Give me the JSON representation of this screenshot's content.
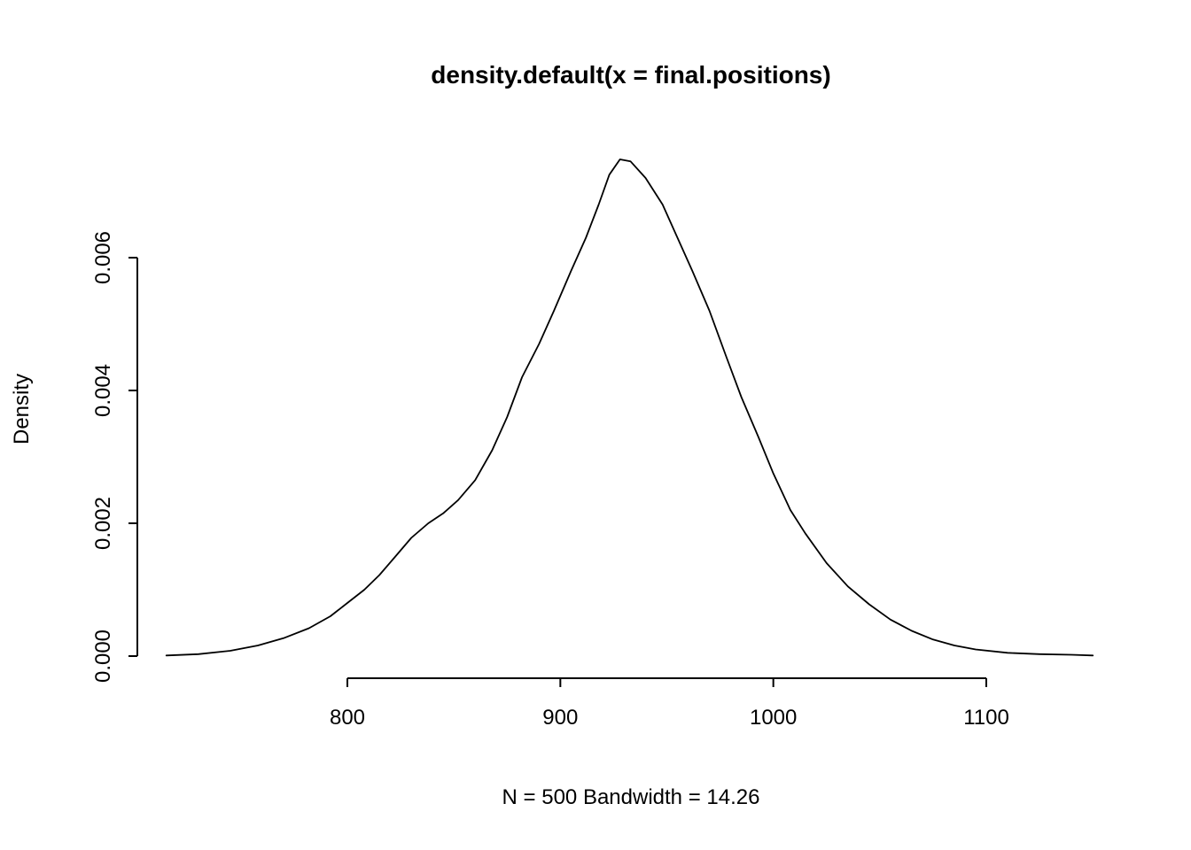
{
  "chart_data": {
    "type": "line",
    "title": "density.default(x = final.positions)",
    "xlabel": "N = 500   Bandwidth = 14.26",
    "ylabel": "Density",
    "n_label": "N = 500",
    "bandwidth_label": "Bandwidth = 14.26",
    "n": 500,
    "bandwidth": 14.26,
    "x_ticks": [
      800,
      900,
      1000,
      1100
    ],
    "x_tick_labels": [
      "800",
      "900",
      "1000",
      "1100"
    ],
    "y_ticks": [
      0,
      0.002,
      0.004,
      0.006
    ],
    "y_tick_labels": [
      "0.000",
      "0.002",
      "0.004",
      "0.006"
    ],
    "xlim": [
      715,
      1150
    ],
    "ylim": [
      0,
      0.0075
    ],
    "grid": false,
    "legend": "none",
    "line_color": "#000000",
    "background_color": "#ffffff",
    "series": [
      {
        "name": "density",
        "x": [
          715,
          730,
          745,
          758,
          770,
          782,
          792,
          800,
          808,
          815,
          822,
          830,
          838,
          845,
          852,
          860,
          868,
          875,
          882,
          890,
          897,
          905,
          912,
          918,
          923,
          928,
          933,
          940,
          948,
          955,
          962,
          970,
          978,
          985,
          993,
          1000,
          1008,
          1015,
          1025,
          1035,
          1045,
          1055,
          1065,
          1075,
          1085,
          1095,
          1110,
          1125,
          1140,
          1150
        ],
        "y": [
          1e-05,
          3e-05,
          8e-05,
          0.00016,
          0.00027,
          0.00042,
          0.0006,
          0.0008,
          0.001,
          0.00122,
          0.00148,
          0.00178,
          0.002,
          0.00215,
          0.00235,
          0.00265,
          0.0031,
          0.0036,
          0.0042,
          0.0047,
          0.0052,
          0.0058,
          0.0063,
          0.0068,
          0.00725,
          0.00748,
          0.00745,
          0.0072,
          0.0068,
          0.0063,
          0.0058,
          0.0052,
          0.0045,
          0.0039,
          0.0033,
          0.00275,
          0.0022,
          0.00185,
          0.0014,
          0.00105,
          0.00078,
          0.00055,
          0.00038,
          0.00025,
          0.00016,
          0.0001,
          5e-05,
          3e-05,
          2e-05,
          1e-05
        ]
      }
    ]
  }
}
